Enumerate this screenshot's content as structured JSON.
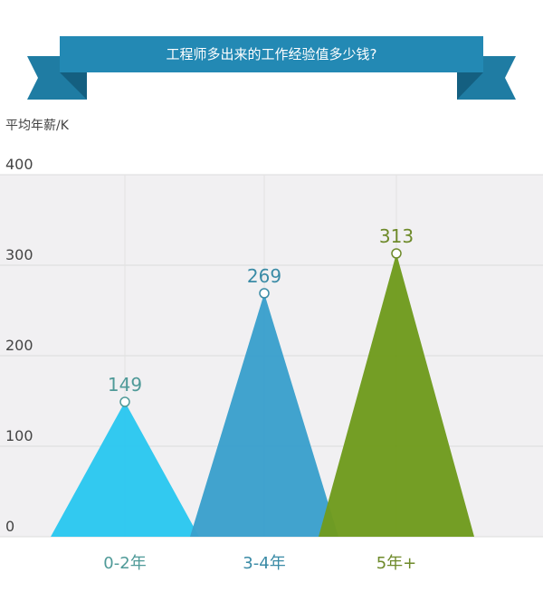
{
  "chart_data": {
    "type": "area",
    "title": "工程师多出来的工作经验值多少钱?",
    "ylabel": "平均年薪/K",
    "ylim": [
      0,
      400
    ],
    "yticks": [
      0,
      100,
      200,
      300,
      400
    ],
    "grid": true,
    "categories": [
      "0-2年",
      "3-4年",
      "5年+"
    ],
    "values": [
      149,
      269,
      313
    ],
    "colors": [
      "#2bc7f0",
      "#3ba0cc",
      "#6f9b1e"
    ],
    "label_colors": [
      "#4f9a98",
      "#3a8ba6",
      "#6e8a2a"
    ]
  },
  "banner_color": "#2389b4"
}
